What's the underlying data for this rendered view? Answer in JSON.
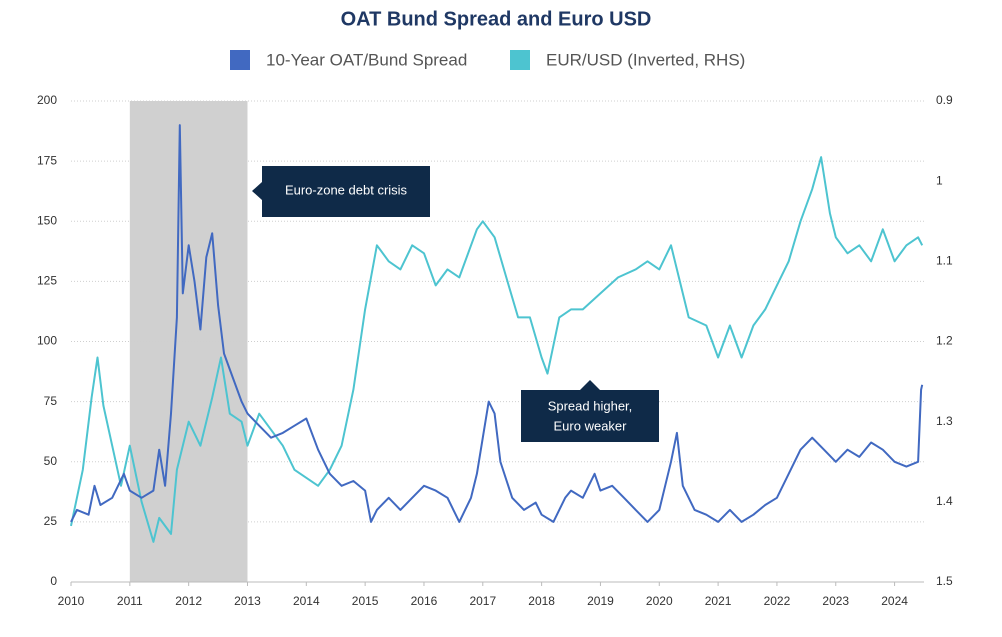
{
  "chart_data": {
    "type": "line",
    "title": "OAT Bund Spread and Euro USD",
    "xlim": [
      2010,
      2024.5
    ],
    "xticks": [
      2010,
      2011,
      2012,
      2013,
      2014,
      2015,
      2016,
      2017,
      2018,
      2019,
      2020,
      2021,
      2022,
      2023,
      2024
    ],
    "ylim": [
      0,
      200
    ],
    "yticks": [
      0,
      25,
      50,
      75,
      100,
      125,
      150,
      175,
      200
    ],
    "y2lim": [
      0.9,
      1.5
    ],
    "y2_inverted": true,
    "y2ticks": [
      0.9,
      1,
      1.1,
      1.2,
      1.3,
      1.4,
      1.5
    ],
    "grid": true,
    "legend": "top",
    "shaded_span": [
      2011,
      2013
    ],
    "annotations": [
      "Euro-zone debt crisis",
      "Spread higher,",
      "Euro weaker"
    ],
    "series": [
      {
        "name": "10-Year OAT/Bund Spread",
        "color": "#4169c1",
        "x": [
          2010.0,
          2010.1,
          2010.3,
          2010.4,
          2010.5,
          2010.7,
          2010.9,
          2011.0,
          2011.2,
          2011.4,
          2011.5,
          2011.6,
          2011.7,
          2011.8,
          2011.85,
          2011.9,
          2012.0,
          2012.1,
          2012.2,
          2012.3,
          2012.4,
          2012.5,
          2012.6,
          2012.75,
          2012.9,
          2013.0,
          2013.2,
          2013.4,
          2013.6,
          2013.8,
          2014.0,
          2014.2,
          2014.4,
          2014.6,
          2014.8,
          2015.0,
          2015.1,
          2015.2,
          2015.4,
          2015.6,
          2015.8,
          2016.0,
          2016.2,
          2016.4,
          2016.5,
          2016.6,
          2016.8,
          2016.9,
          2017.0,
          2017.1,
          2017.2,
          2017.3,
          2017.5,
          2017.7,
          2017.9,
          2018.0,
          2018.2,
          2018.4,
          2018.5,
          2018.7,
          2018.9,
          2019.0,
          2019.2,
          2019.4,
          2019.6,
          2019.8,
          2020.0,
          2020.2,
          2020.3,
          2020.4,
          2020.6,
          2020.8,
          2021.0,
          2021.2,
          2021.4,
          2021.6,
          2021.8,
          2022.0,
          2022.2,
          2022.4,
          2022.6,
          2022.8,
          2023.0,
          2023.2,
          2023.4,
          2023.6,
          2023.8,
          2024.0,
          2024.2,
          2024.4,
          2024.45,
          2024.47
        ],
        "values": [
          25,
          30,
          28,
          40,
          32,
          35,
          45,
          38,
          35,
          38,
          55,
          40,
          70,
          110,
          190,
          120,
          140,
          125,
          105,
          135,
          145,
          115,
          95,
          85,
          75,
          70,
          65,
          60,
          62,
          65,
          68,
          55,
          45,
          40,
          42,
          38,
          25,
          30,
          35,
          30,
          35,
          40,
          38,
          35,
          30,
          25,
          35,
          45,
          60,
          75,
          70,
          50,
          35,
          30,
          33,
          28,
          25,
          35,
          38,
          35,
          45,
          38,
          40,
          35,
          30,
          25,
          30,
          50,
          62,
          40,
          30,
          28,
          25,
          30,
          25,
          28,
          32,
          35,
          45,
          55,
          60,
          55,
          50,
          55,
          52,
          58,
          55,
          50,
          48,
          50,
          80,
          82
        ]
      },
      {
        "name": "EUR/USD (Inverted, RHS)",
        "color": "#4dc4d0",
        "axis": "y2",
        "x": [
          2010.0,
          2010.2,
          2010.35,
          2010.45,
          2010.55,
          2010.7,
          2010.85,
          2011.0,
          2011.2,
          2011.4,
          2011.5,
          2011.7,
          2011.8,
          2011.9,
          2012.0,
          2012.2,
          2012.4,
          2012.55,
          2012.7,
          2012.9,
          2013.0,
          2013.2,
          2013.4,
          2013.6,
          2013.8,
          2014.0,
          2014.2,
          2014.4,
          2014.6,
          2014.8,
          2015.0,
          2015.2,
          2015.4,
          2015.6,
          2015.8,
          2016.0,
          2016.2,
          2016.4,
          2016.6,
          2016.9,
          2017.0,
          2017.2,
          2017.4,
          2017.6,
          2017.8,
          2018.0,
          2018.1,
          2018.3,
          2018.5,
          2018.7,
          2019.0,
          2019.3,
          2019.6,
          2019.8,
          2020.0,
          2020.2,
          2020.5,
          2020.8,
          2021.0,
          2021.2,
          2021.4,
          2021.6,
          2021.8,
          2022.0,
          2022.2,
          2022.4,
          2022.6,
          2022.75,
          2022.9,
          2023.0,
          2023.2,
          2023.4,
          2023.6,
          2023.8,
          2024.0,
          2024.2,
          2024.4,
          2024.47
        ],
        "values": [
          1.43,
          1.36,
          1.27,
          1.22,
          1.28,
          1.33,
          1.38,
          1.33,
          1.4,
          1.45,
          1.42,
          1.44,
          1.36,
          1.33,
          1.3,
          1.33,
          1.27,
          1.22,
          1.29,
          1.3,
          1.33,
          1.29,
          1.31,
          1.33,
          1.36,
          1.37,
          1.38,
          1.36,
          1.33,
          1.26,
          1.16,
          1.08,
          1.1,
          1.11,
          1.08,
          1.09,
          1.13,
          1.11,
          1.12,
          1.06,
          1.05,
          1.07,
          1.12,
          1.17,
          1.17,
          1.22,
          1.24,
          1.17,
          1.16,
          1.16,
          1.14,
          1.12,
          1.11,
          1.1,
          1.11,
          1.08,
          1.17,
          1.18,
          1.22,
          1.18,
          1.22,
          1.18,
          1.16,
          1.13,
          1.1,
          1.05,
          1.01,
          0.97,
          1.04,
          1.07,
          1.09,
          1.08,
          1.1,
          1.06,
          1.1,
          1.08,
          1.07,
          1.08
        ]
      }
    ]
  }
}
